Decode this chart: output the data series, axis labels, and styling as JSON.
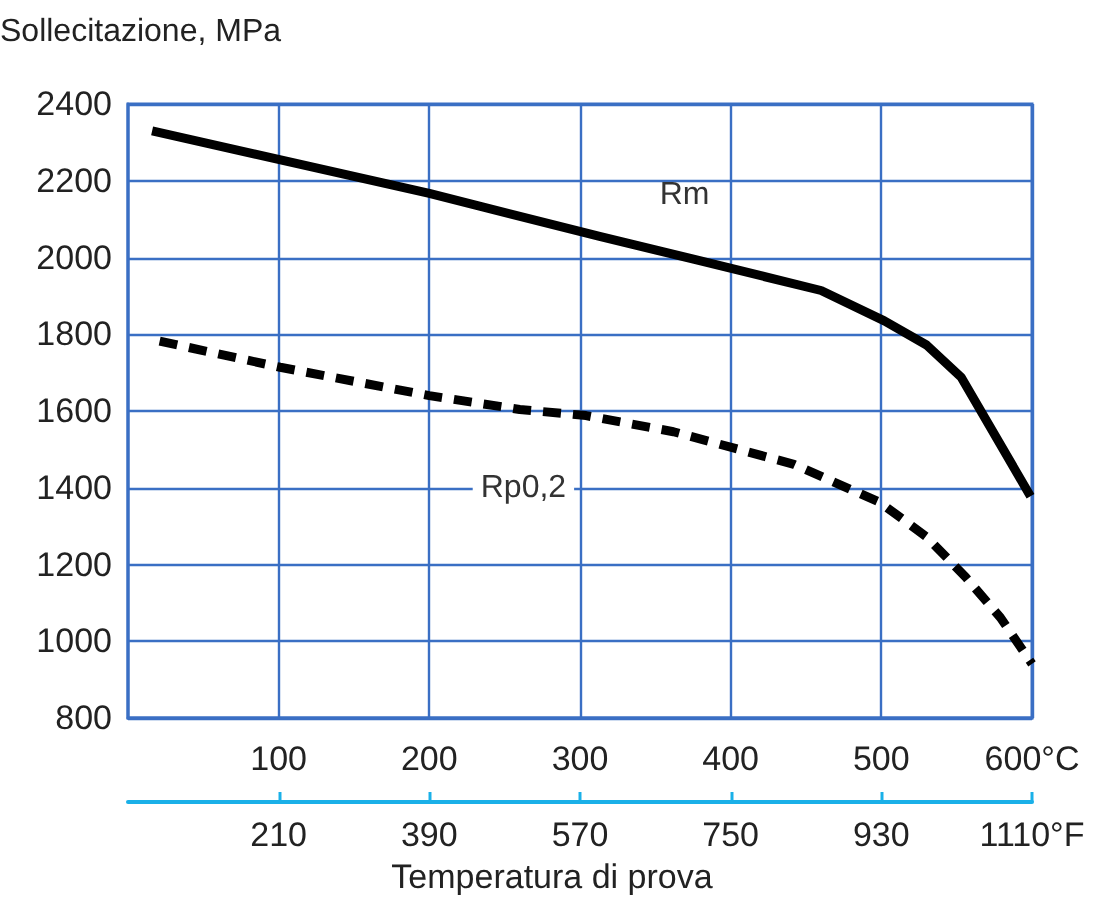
{
  "chart_data": {
    "type": "line",
    "ylabel": "Sollecitazione, MPa",
    "xlabel": "Temperatura di prova",
    "xlim": [
      0,
      600
    ],
    "xticks": [
      100,
      200,
      300,
      400,
      500,
      {
        "value": 600,
        "label": "600°C"
      }
    ],
    "x2lim": [
      30,
      1110
    ],
    "x2ticks": [
      210,
      390,
      570,
      750,
      930,
      {
        "value": 1110,
        "label": "1110°F"
      }
    ],
    "ylim": [
      800,
      2400
    ],
    "yticks": [
      800,
      1000,
      1200,
      1400,
      1600,
      1800,
      2000,
      2200,
      2400
    ],
    "grid": true,
    "legend": false,
    "marker": "none",
    "series": [
      {
        "name": "Rm",
        "color": "#000000",
        "line_style": "solid",
        "x": [
          16,
          200,
          313,
          376,
          460,
          502,
          530,
          553,
          599
        ],
        "values": [
          2330,
          2167,
          2055,
          1995,
          1914,
          1835,
          1772,
          1688,
          1378
        ]
      },
      {
        "name": "Rp0,2",
        "color": "#000000",
        "line_style": "dashed",
        "x": [
          21,
          101,
          200,
          260,
          304,
          362,
          442,
          499,
          530,
          556,
          579,
          600
        ],
        "values": [
          1782,
          1714,
          1640,
          1604,
          1588,
          1546,
          1461,
          1362,
          1272,
          1167,
          1062,
          941
        ]
      }
    ]
  }
}
